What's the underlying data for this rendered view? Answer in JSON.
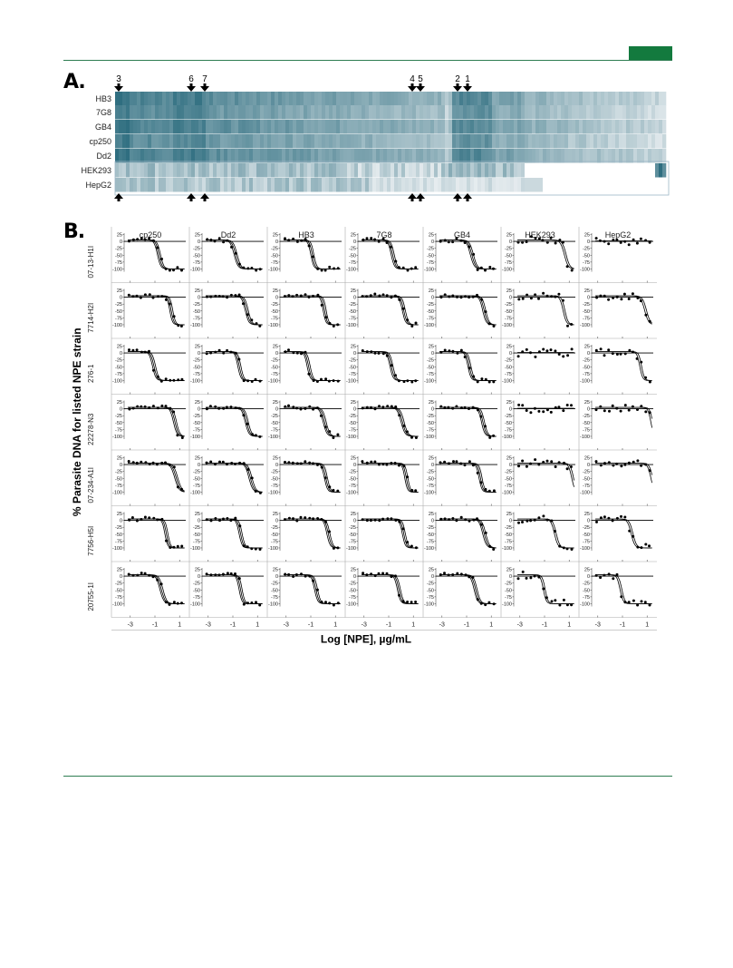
{
  "panel_a": {
    "letter": "A.",
    "arrow_labels": [
      "3",
      "6",
      "7",
      "4",
      "5",
      "2",
      "1"
    ],
    "parasite_strains": [
      "HB3",
      "7G8",
      "GB4",
      "cp250",
      "Dd2"
    ],
    "human_cell_lines": [
      "HEK293",
      "HepG2"
    ],
    "colors": {
      "high": "#2f6e80",
      "low": "#e6ecef",
      "empty": "#ffffff"
    }
  },
  "panel_b": {
    "letter": "B.",
    "y_axis_title": "% Parasite DNA for listed NPE strain",
    "x_axis_title": "Log [NPE], µg/mL",
    "columns": [
      "cp250",
      "Dd2",
      "HB3",
      "7G8",
      "GB4",
      "HEK293",
      "HepG2"
    ],
    "rows": [
      "07-13-H1I",
      "7714-H2I",
      "276-1",
      "22278-N3",
      "07-234-A1I",
      "7756-H5I",
      "20755-1I"
    ],
    "y_ticks": [
      "25",
      "0",
      "-25",
      "-50",
      "-75",
      "-100"
    ],
    "x_ticks": [
      "-3",
      "-1",
      "1"
    ]
  },
  "chart_data": {
    "type": "scatter",
    "title": "",
    "xlabel": "Log [NPE], µg/mL",
    "ylabel": "% Parasite DNA for listed NPE strain",
    "xlim": [
      -3.5,
      1.5
    ],
    "ylim": [
      -110,
      30
    ],
    "columns": [
      "cp250",
      "Dd2",
      "HB3",
      "7G8",
      "GB4",
      "HEK293",
      "HepG2"
    ],
    "rows": [
      "07-13-H1I",
      "7714-H2I",
      "276-1",
      "22278-N3",
      "07-234-A1I",
      "7756-H5I",
      "20755-1I"
    ],
    "log_ic50": [
      [
        -0.8,
        -0.9,
        -1.0,
        -0.8,
        -0.7,
        0.6,
        null
      ],
      [
        0.2,
        0.0,
        0.0,
        0.1,
        0.3,
        0.5,
        0.8
      ],
      [
        -1.2,
        -0.6,
        -1.3,
        -0.9,
        -0.9,
        null,
        0.4
      ],
      [
        0.5,
        0.0,
        0.0,
        0.0,
        0.2,
        null,
        1.3
      ],
      [
        0.6,
        0.3,
        0.1,
        0.3,
        0.0,
        1.2,
        1.3
      ],
      [
        -0.2,
        -0.5,
        0.3,
        0.1,
        0.3,
        -0.2,
        -0.3
      ],
      [
        -0.6,
        -0.5,
        -0.7,
        -0.3,
        -0.4,
        -1.1,
        -1.2
      ]
    ]
  }
}
